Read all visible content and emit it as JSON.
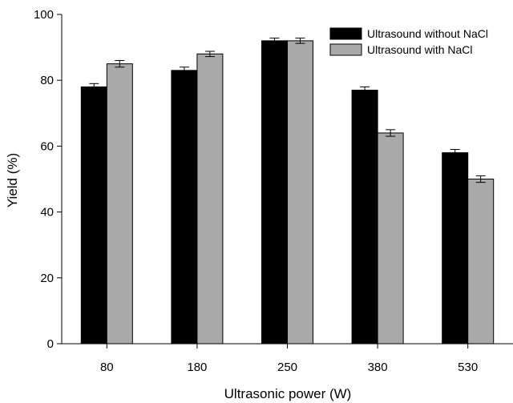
{
  "chart_data": {
    "type": "bar",
    "title": "",
    "xlabel": "Ultrasonic power (W)",
    "ylabel": "Yield (%)",
    "ylim": [
      0,
      100
    ],
    "yticks": [
      0,
      20,
      40,
      60,
      80,
      100
    ],
    "categories": [
      "80",
      "180",
      "250",
      "380",
      "530"
    ],
    "series": [
      {
        "name": "Ultrasound without NaCl",
        "color": "#000000",
        "values": [
          78,
          83,
          92,
          77,
          58
        ],
        "errors": [
          1,
          1,
          0.8,
          1,
          1
        ]
      },
      {
        "name": "Ultrasound with NaCl",
        "color": "#a9a9a9",
        "values": [
          85,
          88,
          92,
          64,
          50
        ],
        "errors": [
          1,
          0.8,
          0.8,
          1,
          1
        ]
      }
    ],
    "legend_position": "top-right",
    "grid": false
  }
}
